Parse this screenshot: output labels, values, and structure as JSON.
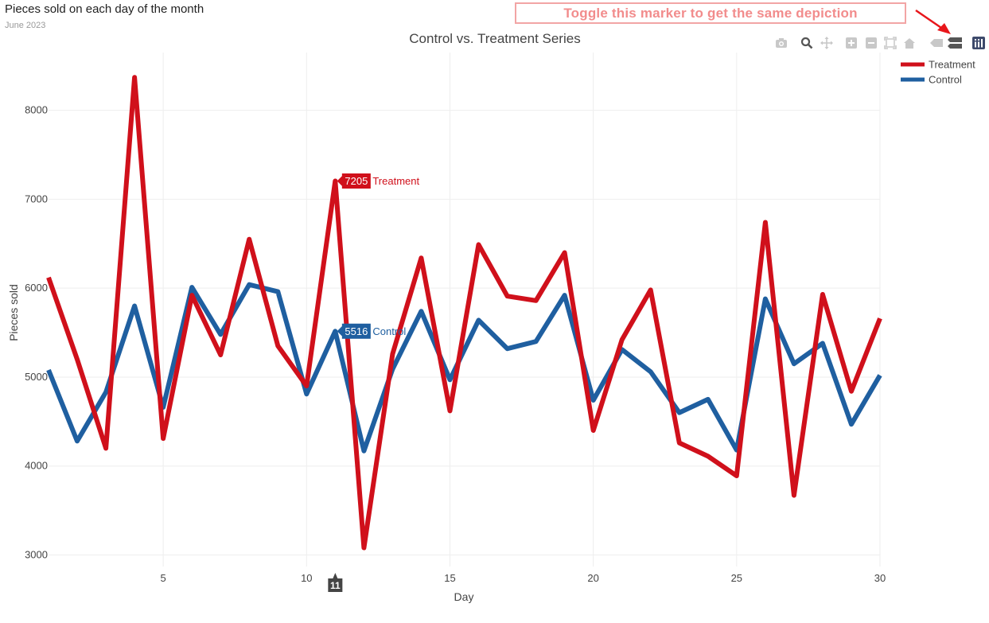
{
  "page": {
    "title": "Pieces sold on each day of the month",
    "subtitle": "June 2023",
    "callout": "Toggle this marker to get the same depiction"
  },
  "modebar": {
    "icons": [
      "camera-icon",
      "zoom-icon",
      "pan-icon",
      "zoom-in-icon",
      "zoom-out-icon",
      "autoscale-icon",
      "reset-axes-icon",
      "hover-closest-icon",
      "hover-compare-icon",
      "plotly-logo-icon"
    ]
  },
  "colors": {
    "treatment": "#d0101b",
    "control": "#1f5fa0",
    "grid": "#eeeeee",
    "annotation_arrow": "#e8161b"
  },
  "chart_data": {
    "type": "line",
    "title": "Control vs. Treatment Series",
    "xlabel": "Day",
    "ylabel": "Pieces sold",
    "xlim": [
      1,
      30
    ],
    "ylim": [
      2870,
      8650
    ],
    "xticks": [
      5,
      10,
      15,
      20,
      25,
      30
    ],
    "yticks": [
      3000,
      4000,
      5000,
      6000,
      7000,
      8000
    ],
    "grid": true,
    "legend": "top-right",
    "x": [
      1,
      2,
      3,
      4,
      5,
      6,
      7,
      8,
      9,
      10,
      11,
      12,
      13,
      14,
      15,
      16,
      17,
      18,
      19,
      20,
      21,
      22,
      23,
      24,
      25,
      26,
      27,
      28,
      29,
      30
    ],
    "series": [
      {
        "name": "Treatment",
        "color": "#d0101b",
        "values": [
          6120,
          5200,
          4200,
          8370,
          4310,
          5920,
          5250,
          6550,
          5350,
          4900,
          7205,
          3080,
          5260,
          6340,
          4620,
          6490,
          5910,
          5860,
          6400,
          4400,
          5420,
          5980,
          4260,
          4110,
          3890,
          6740,
          3670,
          5930,
          4840,
          5660
        ]
      },
      {
        "name": "Control",
        "color": "#1f5fa0",
        "values": [
          5080,
          4280,
          4830,
          5800,
          4660,
          6010,
          5480,
          6040,
          5960,
          4810,
          5516,
          4170,
          5090,
          5740,
          4970,
          5640,
          5320,
          5400,
          5920,
          4740,
          5310,
          5060,
          4600,
          4750,
          4180,
          5880,
          5150,
          5380,
          4470,
          5020
        ]
      }
    ],
    "hover": {
      "x": 11,
      "x_label": "11",
      "treatment_value": "7205",
      "treatment_name": "Treatment",
      "control_value": "5516",
      "control_name": "Control"
    }
  }
}
